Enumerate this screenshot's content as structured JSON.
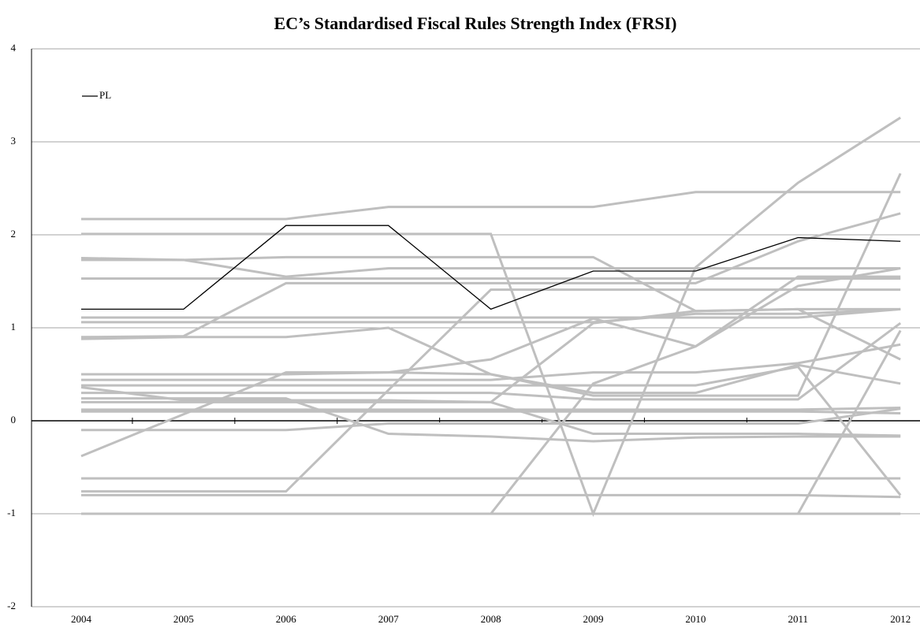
{
  "chart_data": {
    "type": "line",
    "title": "EC’s Standardised Fiscal Rules Strength Index (FRSI)",
    "categories": [
      "2004",
      "2005",
      "2006",
      "2007",
      "2008",
      "2009",
      "2010",
      "2011",
      "2012"
    ],
    "ylim": [
      -2,
      4
    ],
    "yticks": [
      -2,
      -1,
      0,
      1,
      2,
      3,
      4
    ],
    "grid": true,
    "legend": "upper left",
    "series": [
      {
        "color": "#bfbfbf",
        "values": [
          2.17,
          2.17,
          2.17,
          2.3,
          2.3,
          2.3,
          2.46,
          2.46,
          2.46
        ]
      },
      {
        "color": "#bfbfbf",
        "values": [
          2.01,
          2.01,
          2.01,
          2.01,
          2.01,
          -1,
          1.65,
          2.56,
          3.26
        ]
      },
      {
        "color": "#bfbfbf",
        "values": [
          1.75,
          1.73,
          1.55,
          1.64,
          1.64,
          1.64,
          1.64,
          1.64,
          1.64
        ]
      },
      {
        "color": "#bfbfbf",
        "values": [
          1.73,
          1.73,
          1.76,
          1.76,
          1.76,
          1.76,
          1.18,
          1.2,
          0.66
        ]
      },
      {
        "color": "#bfbfbf",
        "values": [
          1.53,
          1.53,
          1.53,
          1.53,
          1.53,
          1.53,
          1.53,
          1.53,
          1.53
        ]
      },
      {
        "color": "#bfbfbf",
        "values": [
          0.9,
          0.91,
          1.48,
          1.48,
          1.48,
          1.48,
          1.48,
          1.93,
          2.23
        ]
      },
      {
        "color": "#bfbfbf",
        "values": [
          0.88,
          0.9,
          0.9,
          1.0,
          0.5,
          0.3,
          0.3,
          0.6,
          0.4
        ]
      },
      {
        "color": "#bfbfbf",
        "values": [
          1.11,
          1.11,
          1.11,
          1.11,
          1.11,
          1.11,
          1.11,
          1.11,
          1.2
        ]
      },
      {
        "color": "#bfbfbf",
        "values": [
          1.06,
          1.06,
          1.06,
          1.06,
          1.06,
          1.06,
          1.15,
          1.15,
          1.2
        ]
      },
      {
        "color": "#bfbfbf",
        "values": [
          0.5,
          0.5,
          0.5,
          0.52,
          0.66,
          1.1,
          0.8,
          1.55,
          1.55
        ]
      },
      {
        "color": "#bfbfbf",
        "values": [
          0.44,
          0.44,
          0.44,
          0.44,
          0.44,
          0.52,
          0.52,
          0.62,
          0.82
        ]
      },
      {
        "color": "#bfbfbf",
        "values": [
          0.38,
          0.38,
          0.38,
          0.38,
          0.38,
          0.38,
          0.38,
          0.58,
          -0.8
        ]
      },
      {
        "color": "#bfbfbf",
        "values": [
          0.36,
          0.22,
          0.22,
          0.22,
          0.2,
          1.05,
          1.18,
          1.2,
          1.2
        ]
      },
      {
        "color": "#bfbfbf",
        "values": [
          0.3,
          0.3,
          0.3,
          0.3,
          0.3,
          0.23,
          0.23,
          0.23,
          1.05
        ]
      },
      {
        "color": "#bfbfbf",
        "values": [
          -0.38,
          0.07,
          0.52,
          0.52,
          0.5,
          0.27,
          0.27,
          0.27,
          2.66
        ]
      },
      {
        "color": "#bfbfbf",
        "values": [
          0.12,
          0.12,
          0.12,
          0.12,
          0.12,
          0.12,
          0.12,
          0.12,
          0.14
        ]
      },
      {
        "color": "#bfbfbf",
        "values": [
          0.1,
          0.1,
          0.1,
          0.1,
          0.1,
          0.1,
          0.1,
          0.1,
          0.08
        ]
      },
      {
        "color": "#bfbfbf",
        "values": [
          -0.1,
          -0.1,
          -0.1,
          -0.03,
          -0.03,
          -0.03,
          -0.03,
          -0.03,
          0.13
        ]
      },
      {
        "color": "#bfbfbf",
        "values": [
          0.2,
          0.2,
          0.2,
          0.2,
          0.2,
          -0.14,
          -0.14,
          -0.14,
          -0.16
        ]
      },
      {
        "color": "#bfbfbf",
        "values": [
          0.24,
          0.24,
          0.24,
          -0.14,
          -0.17,
          -0.22,
          -0.18,
          -0.17,
          -0.17
        ]
      },
      {
        "color": "#bfbfbf",
        "values": [
          -0.62,
          -0.62,
          -0.62,
          -0.62,
          -0.62,
          -0.62,
          -0.62,
          -0.62,
          -0.62
        ]
      },
      {
        "color": "#bfbfbf",
        "values": [
          -0.76,
          -0.76,
          -0.76,
          0.33,
          1.41,
          1.41,
          1.41,
          1.41,
          1.41
        ]
      },
      {
        "color": "#bfbfbf",
        "values": [
          -0.8,
          -0.8,
          -0.8,
          -0.8,
          -0.8,
          -0.8,
          -0.8,
          -0.8,
          -0.82
        ]
      },
      {
        "color": "#bfbfbf",
        "values": [
          -1,
          -1,
          -1,
          -1,
          -1,
          0.4,
          0.8,
          1.45,
          1.64
        ]
      },
      {
        "color": "#bfbfbf",
        "values": [
          -1,
          -1,
          -1,
          -1,
          -1,
          -1,
          -1,
          -1,
          0.97
        ]
      },
      {
        "color": "#bfbfbf",
        "values": [
          -1,
          -1,
          -1,
          -1,
          -1,
          -1,
          -1,
          -1,
          -1
        ]
      },
      {
        "name": "PL",
        "color": "#000000",
        "values": [
          1.2,
          1.2,
          2.1,
          2.1,
          1.2,
          1.61,
          1.61,
          1.97,
          1.93
        ]
      }
    ]
  }
}
